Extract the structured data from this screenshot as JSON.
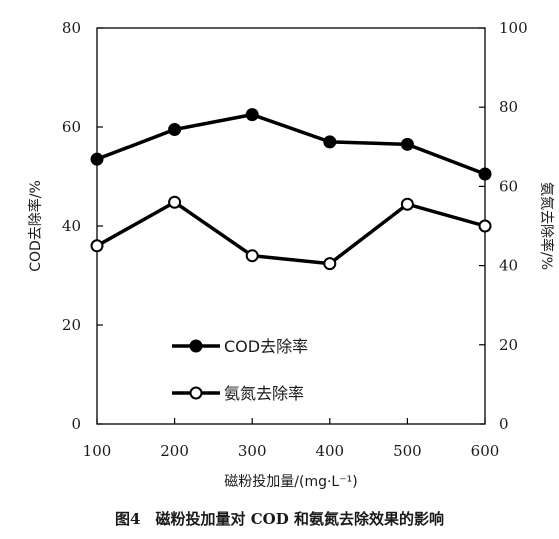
{
  "caption": "图4　磁粉投加量对 COD 和氨氮去除效果的影响",
  "chart_data": {
    "type": "line",
    "x": [
      100,
      200,
      300,
      400,
      500,
      600
    ],
    "xlabel": "磁粉投加量/(mg·L⁻¹)",
    "xlim": [
      100,
      600
    ],
    "x_ticks": [
      "100",
      "200",
      "300",
      "400",
      "500",
      "600"
    ],
    "y_left": {
      "label": "COD去除率/%",
      "lim": [
        0,
        80
      ],
      "ticks": [
        "0",
        "20",
        "40",
        "60",
        "80"
      ]
    },
    "y_right": {
      "label": "氨氮去除率/%",
      "lim": [
        0,
        100
      ],
      "ticks": [
        "0",
        "20",
        "40",
        "60",
        "80",
        "100"
      ]
    },
    "grid": false,
    "legend_position": "bottom-left inside",
    "series": [
      {
        "name": "COD去除率",
        "axis": "left",
        "marker": "filled-circle",
        "color": "#000000",
        "values": [
          53.5,
          59.5,
          62.5,
          57,
          56.5,
          50.5
        ]
      },
      {
        "name": "氨氮去除率",
        "axis": "right",
        "marker": "open-circle",
        "color": "#000000",
        "values": [
          45,
          56,
          42.5,
          40.5,
          55.5,
          50
        ]
      }
    ]
  }
}
